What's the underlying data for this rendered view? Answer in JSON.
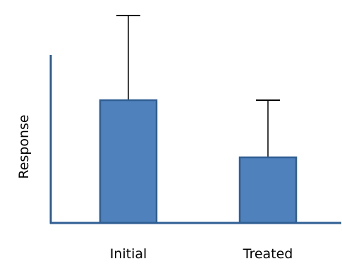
{
  "chart_data": {
    "type": "bar",
    "categories": [
      "Initial",
      "Treated"
    ],
    "values": [
      0.58,
      0.31
    ],
    "error_upper": [
      0.98,
      0.58
    ],
    "ylabel": "Response",
    "ylim": [
      0,
      1
    ],
    "grid": false,
    "legend": "none",
    "colors": {
      "bar_fill": "#4F81BD",
      "bar_stroke": "#2F5E93",
      "axis": "#2F5E93",
      "error_bar": "#000000"
    }
  }
}
